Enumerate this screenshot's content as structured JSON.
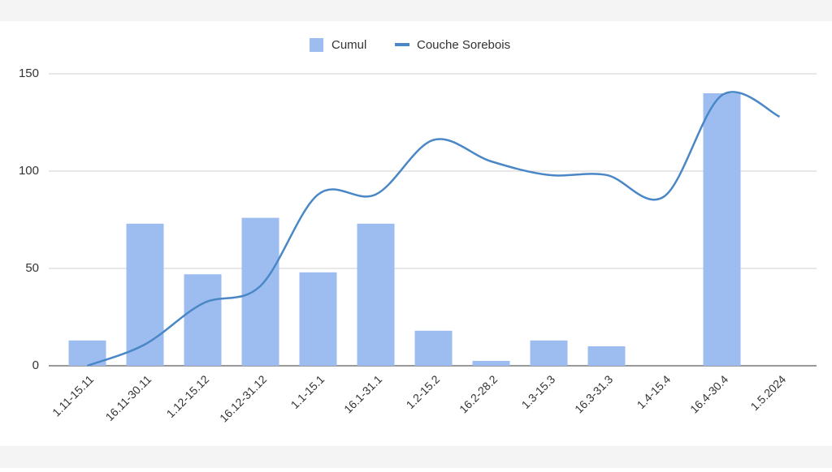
{
  "chart_data": {
    "type": "combo",
    "categories": [
      "1.11-15.11",
      "16.11-30.11",
      "1.12-15.12",
      "16.12-31.12",
      "1.1-15.1",
      "16.1-31.1",
      "1.2-15.2",
      "16.2-28.2",
      "1.3-15.3",
      "16.3-31.3",
      "1.4-15.4",
      "16.4-30.4",
      "1.5.2024"
    ],
    "series": [
      {
        "name": "Cumul",
        "type": "bar",
        "color": "#9dbdf1",
        "values": [
          13,
          73,
          47,
          76,
          48,
          73,
          18,
          2.5,
          13,
          10,
          0,
          140,
          0
        ]
      },
      {
        "name": "Couche Sorebois",
        "type": "line",
        "color": "#4a87c6",
        "values": [
          0,
          11,
          32,
          41,
          88,
          88,
          116,
          105,
          98,
          98,
          87,
          139,
          128
        ]
      }
    ],
    "ylim": [
      0,
      150
    ],
    "yticks": [
      0,
      50,
      100,
      150
    ],
    "grid": true,
    "legend": "top"
  }
}
